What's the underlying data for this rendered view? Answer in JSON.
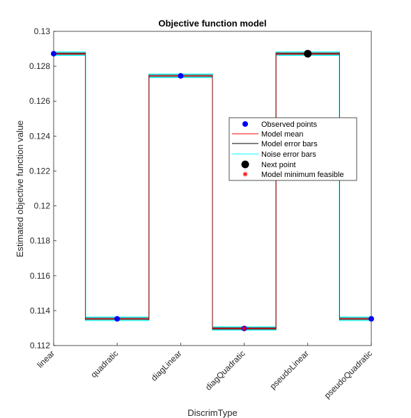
{
  "chart_data": {
    "type": "line",
    "title": "Objective function model",
    "xlabel": "DiscrimType",
    "ylabel": "Estimated objective function value",
    "categories": [
      "linear",
      "quadratic",
      "diagLinear",
      "diagQuadratic",
      "pseudoLinear",
      "pseudoQuadratic"
    ],
    "ylim": [
      0.112,
      0.13
    ],
    "yticks": [
      0.112,
      0.114,
      0.116,
      0.118,
      0.12,
      0.122,
      0.124,
      0.126,
      0.128,
      0.13
    ],
    "ytick_labels": [
      "0.112",
      "0.114",
      "0.116",
      "0.118",
      "0.12",
      "0.122",
      "0.124",
      "0.126",
      "0.128",
      "0.13"
    ],
    "grid": false,
    "legend_position": "center-right",
    "model_mean": [
      0.12872,
      0.11353,
      0.12745,
      0.11298,
      0.12872,
      0.11353
    ],
    "model_error_bars": [
      [
        0.12868,
        0.12876
      ],
      [
        0.11349,
        0.11357
      ],
      [
        0.12741,
        0.12749
      ],
      [
        0.11294,
        0.11302
      ],
      [
        0.12868,
        0.12876
      ],
      [
        0.11349,
        0.11357
      ]
    ],
    "noise_error_bars": [
      [
        0.12862,
        0.12882
      ],
      [
        0.11343,
        0.11363
      ],
      [
        0.12735,
        0.12755
      ],
      [
        0.11288,
        0.11308
      ],
      [
        0.12862,
        0.12882
      ],
      [
        0.11343,
        0.11363
      ]
    ],
    "observed_points": [
      {
        "category": "linear",
        "y": 0.12872
      },
      {
        "category": "quadratic",
        "y": 0.11353
      },
      {
        "category": "diagLinear",
        "y": 0.12745
      },
      {
        "category": "diagQuadratic",
        "y": 0.11298
      },
      {
        "category": "pseudoQuadratic",
        "y": 0.11353
      }
    ],
    "next_point": {
      "category": "pseudoLinear",
      "y": 0.12872
    },
    "model_minimum_feasible": {
      "category": "diagQuadratic",
      "y": 0.11298
    },
    "series": [
      {
        "name": "Observed points",
        "marker": "filled-circle",
        "color": "#0000ff"
      },
      {
        "name": "Model mean",
        "line": "solid",
        "color": "#ff0000"
      },
      {
        "name": "Model error bars",
        "line": "solid",
        "color": "#000000"
      },
      {
        "name": "Noise error bars",
        "line": "solid",
        "color": "#00ffff"
      },
      {
        "name": "Next point",
        "marker": "filled-circle-large",
        "color": "#000000"
      },
      {
        "name": "Model minimum feasible",
        "marker": "asterisk",
        "color": "#ff0000"
      }
    ]
  }
}
